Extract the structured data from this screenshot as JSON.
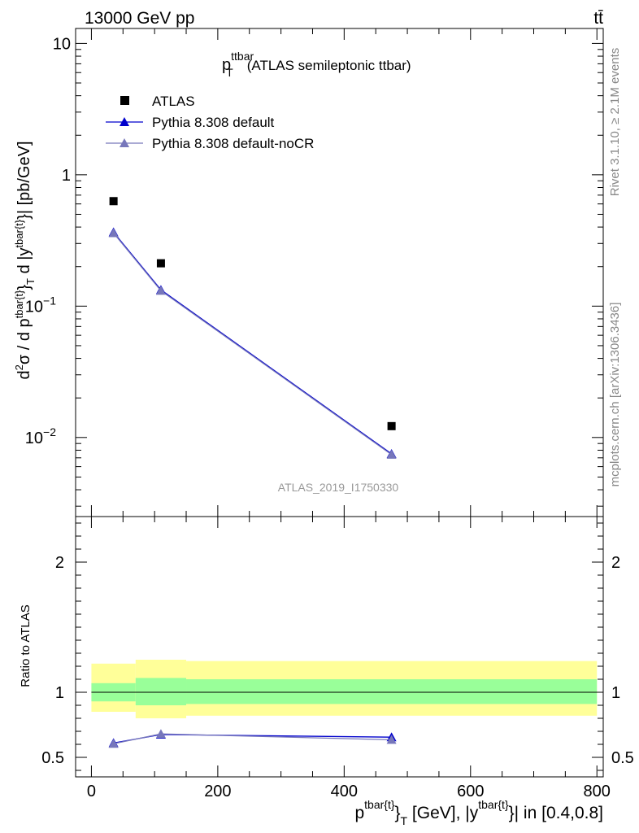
{
  "header": {
    "energy_label": "13000 GeV pp",
    "process_label": "tt̄"
  },
  "side_labels": {
    "rivet": "Rivet 3.1.10, ≥ 2.1M events",
    "mcplots": "mcplots.cern.ch [arXiv:1306.3436]"
  },
  "chart_data": [
    {
      "type": "scatter",
      "title": {
        "main": "p",
        "sup": "ttbar",
        "sub": "T",
        "rest": "(ATLAS semileptonic ttbar)"
      },
      "watermark": "ATLAS_2019_I1750330",
      "ylabel": {
        "a": "d",
        "a_sup": "2",
        "b": "σ  /  d p",
        "b_sup": "tbar{t}",
        "c": "}",
        "c_sub": "T",
        "d": " d |y",
        "d_sup": "tbar{t}",
        "e": "}| [pb/GeV]"
      },
      "yscale": "log",
      "ylim": [
        0.0025,
        13
      ],
      "xlim": [
        -25,
        810
      ],
      "y_ticks": [
        {
          "value": 10,
          "label": "10"
        },
        {
          "value": 1,
          "label": "1"
        },
        {
          "value": 0.1,
          "base": "10",
          "exp": "−1"
        },
        {
          "value": 0.01,
          "base": "10",
          "exp": "−2"
        }
      ],
      "legend_position": "top-left",
      "series": [
        {
          "name": "ATLAS",
          "marker": "square",
          "color": "#000000",
          "x": [
            35,
            110,
            475
          ],
          "y": [
            0.63,
            0.212,
            0.0122
          ]
        },
        {
          "name": "Pythia 8.308 default",
          "marker": "triangle",
          "color": "#0000cc",
          "x": [
            35,
            110,
            475
          ],
          "y": [
            0.365,
            0.133,
            0.0075
          ]
        },
        {
          "name": "Pythia 8.308 default-noCR",
          "marker": "triangle",
          "color": "#7777bb",
          "x": [
            35,
            110,
            475
          ],
          "y": [
            0.36,
            0.131,
            0.0074
          ]
        }
      ]
    },
    {
      "type": "line",
      "ylabel": "Ratio to ATLAS",
      "xlabel": {
        "a": "p",
        "a_sup": "tbar{t}",
        "b": "}",
        "b_sub": "T",
        "c": " [GeV], |y",
        "c_sup": "tbar{t}",
        "d": "}| in [0.4,0.8]"
      },
      "ylim": [
        0.35,
        2.35
      ],
      "xlim": [
        -25,
        810
      ],
      "x_ticks": [
        {
          "value": 0,
          "label": "0"
        },
        {
          "value": 200,
          "label": "200"
        },
        {
          "value": 400,
          "label": "400"
        },
        {
          "value": 600,
          "label": "600"
        },
        {
          "value": 800,
          "label": "800"
        }
      ],
      "y_ticks": [
        {
          "value": 0.5,
          "label": "0.5"
        },
        {
          "value": 1,
          "label": "1"
        },
        {
          "value": 2,
          "label": "2"
        }
      ],
      "bands": {
        "outer_color": "#ffff99",
        "inner_color": "#99ff99",
        "bins": [
          {
            "x0": 0,
            "x1": 70,
            "outer": [
              0.85,
              1.22
            ],
            "inner": [
              0.93,
              1.07
            ]
          },
          {
            "x0": 70,
            "x1": 150,
            "outer": [
              0.8,
              1.25
            ],
            "inner": [
              0.9,
              1.11
            ]
          },
          {
            "x0": 150,
            "x1": 800,
            "outer": [
              0.82,
              1.24
            ],
            "inner": [
              0.91,
              1.1
            ]
          }
        ]
      },
      "series": [
        {
          "name": "Pythia 8.308 default",
          "color": "#0000cc",
          "x": [
            35,
            110,
            475
          ],
          "y": [
            0.61,
            0.675,
            0.655
          ]
        },
        {
          "name": "Pythia 8.308 default-noCR",
          "color": "#7777bb",
          "x": [
            35,
            110,
            475
          ],
          "y": [
            0.605,
            0.68,
            0.635
          ]
        }
      ]
    }
  ]
}
